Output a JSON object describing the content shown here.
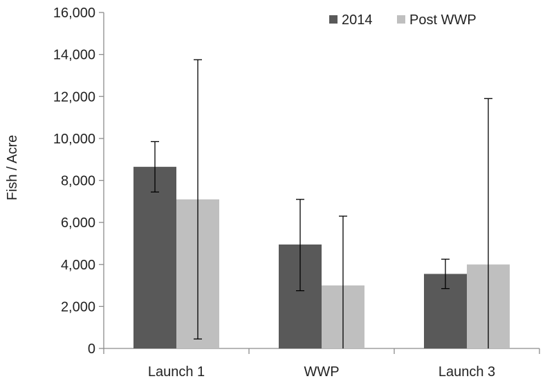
{
  "chart_data": {
    "type": "bar",
    "title": "",
    "xlabel": "",
    "ylabel": "Fish / Acre",
    "ylim": [
      0,
      16000
    ],
    "yticks": [
      0,
      2000,
      4000,
      6000,
      8000,
      10000,
      12000,
      14000,
      16000
    ],
    "ytick_labels": [
      "0",
      "2,000",
      "4,000",
      "6,000",
      "8,000",
      "10,000",
      "12,000",
      "14,000",
      "16,000"
    ],
    "categories": [
      "Launch 1",
      "WWP",
      "Launch 3"
    ],
    "series": [
      {
        "name": "2014",
        "color": "#595959",
        "values": [
          8650,
          4950,
          3550
        ],
        "error_low": [
          7450,
          2750,
          2850
        ],
        "error_high": [
          9850,
          7100,
          4250
        ]
      },
      {
        "name": "Post WWP",
        "color": "#bfbfbf",
        "values": [
          7100,
          3000,
          4000
        ],
        "error_low": [
          450,
          0,
          0
        ],
        "error_high": [
          13750,
          6300,
          11900
        ]
      }
    ],
    "grid": false,
    "legend_position": "top-right"
  }
}
